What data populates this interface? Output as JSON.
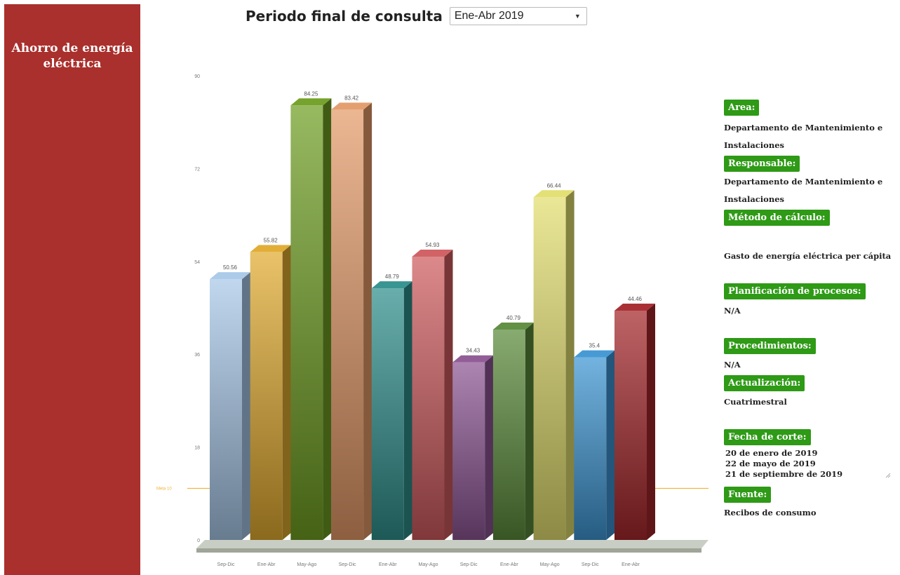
{
  "sidebar": {
    "title": "Ahorro de energía eléctrica"
  },
  "header": {
    "label": "Periodo final de consulta",
    "selected_period": "Ene-Abr 2019"
  },
  "info": {
    "area_label": "Area:",
    "area_value": "Departamento de Mantenimiento e Instalaciones",
    "responsable_label": "Responsable:",
    "responsable_value": "Departamento de Mantenimiento e Instalaciones",
    "metodo_label": "Método de cálculo:",
    "metodo_value": "Gasto de energía eléctrica per cápita",
    "planificacion_label": "Planificación de procesos:",
    "planificacion_value": "N/A",
    "procedimientos_label": "Procedimientos:",
    "procedimientos_value": "N/A",
    "actualizacion_label": "Actualización:",
    "actualizacion_value": "Cuatrimestral",
    "fecha_label": "Fecha de corte:",
    "fecha_lines": [
      "20 de enero de 2019",
      "22 de mayo de 2019",
      "21 de septiembre de 2019"
    ],
    "fuente_label": "Fuente:",
    "fuente_value": "Recibos de consumo"
  },
  "chart_data": {
    "type": "bar",
    "categories": [
      "Sep-Dic",
      "Ene-Abr",
      "May-Ago",
      "Sep-Dic",
      "Ene-Abr",
      "May-Ago",
      "Sep-Dic",
      "Ene-Abr",
      "May-Ago",
      "Sep-Dic",
      "Ene-Abr"
    ],
    "values": [
      50.56,
      55.82,
      84.25,
      83.42,
      48.79,
      54.93,
      34.43,
      40.79,
      66.44,
      35.4,
      44.46
    ],
    "value_labels": [
      "50.56",
      "55.82",
      "84.25",
      "83.42",
      "48.79",
      "54.93",
      "34.43",
      "40.79",
      "66.44",
      "35.4",
      "44.46"
    ],
    "colors": [
      "#a8c8e8",
      "#e0aa2e",
      "#6f9e22",
      "#e39a68",
      "#2f8f8c",
      "#cf5b5e",
      "#8c5592",
      "#5a8a3a",
      "#e2de6e",
      "#3d95d2",
      "#a4262a"
    ],
    "yticks": [
      0,
      18,
      36,
      54,
      72,
      90
    ],
    "ylim": [
      0,
      90
    ],
    "reference_line": {
      "label": "Meta 10",
      "value": 10,
      "color": "#f0b236"
    },
    "title": "",
    "xlabel": "",
    "ylabel": ""
  }
}
